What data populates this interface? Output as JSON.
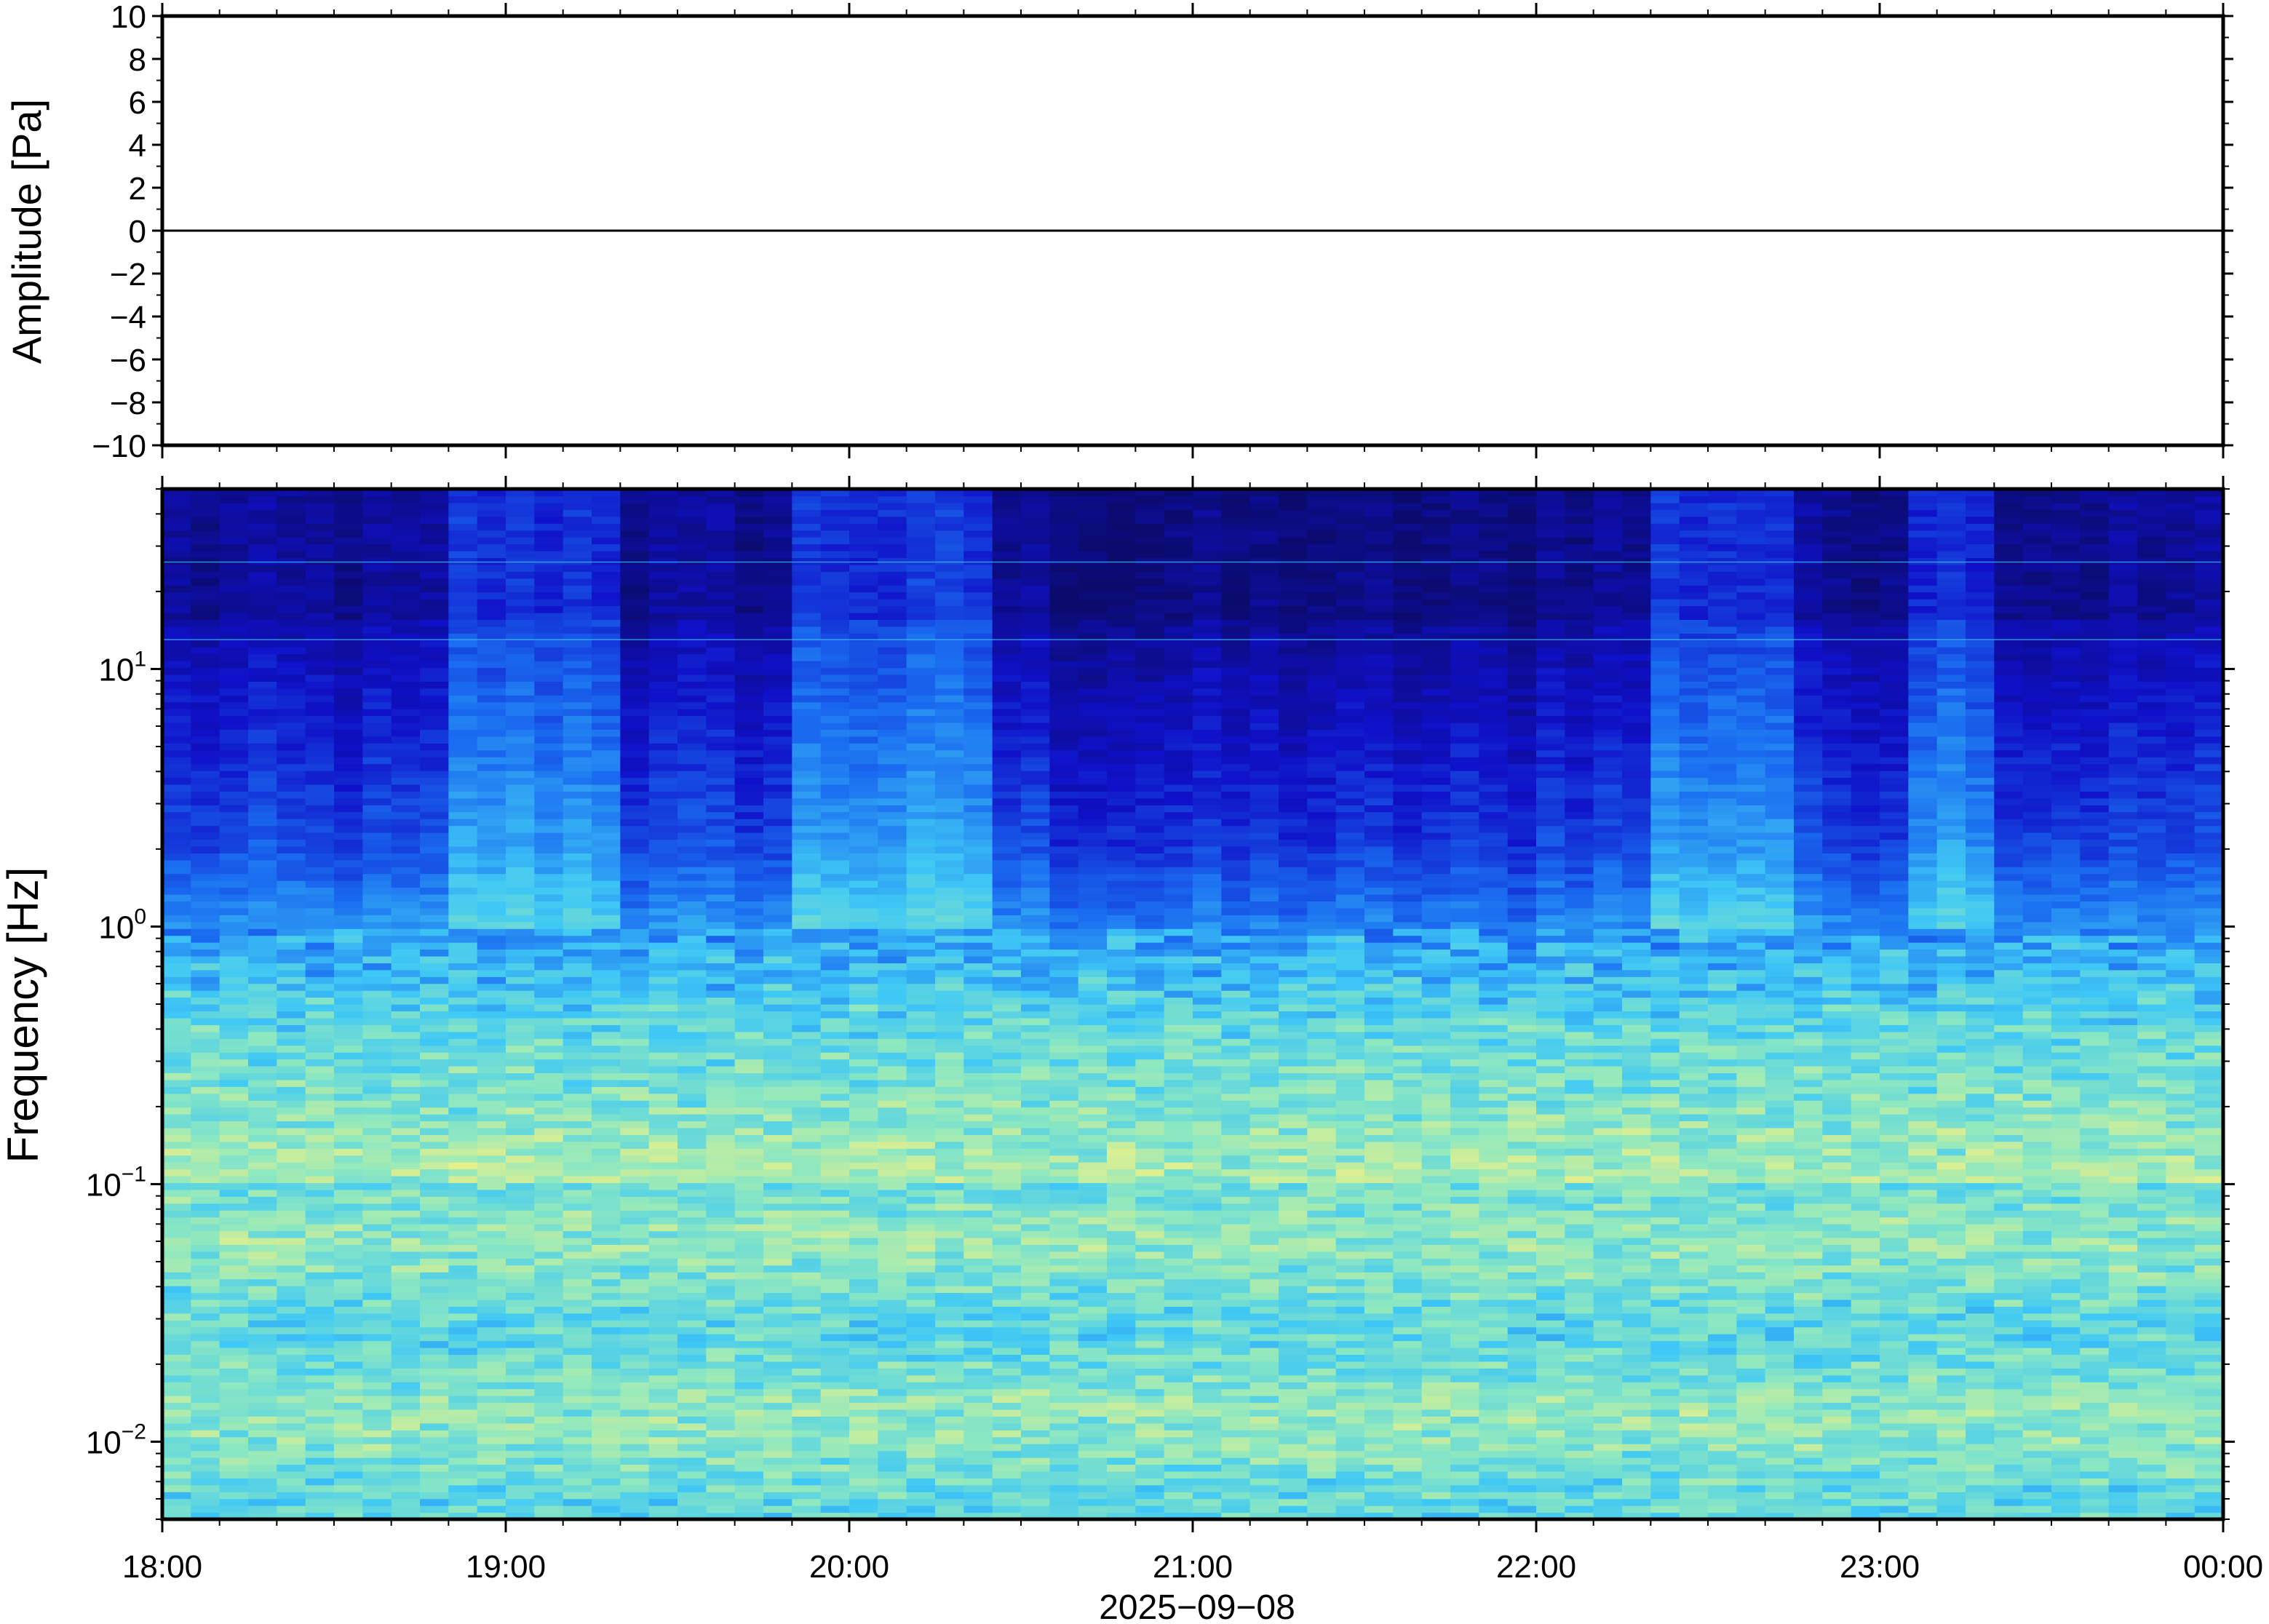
{
  "chart_data": [
    {
      "type": "line",
      "panel": "waveform",
      "ylabel": "Amplitude [Pa]",
      "ylim": [
        -10,
        10
      ],
      "yticks": [
        10,
        8,
        6,
        4,
        2,
        0,
        -2,
        -4,
        -6,
        -8,
        -10
      ],
      "ytick_labels": [
        "10",
        "8",
        "6",
        "4",
        "2",
        "0",
        "−2",
        "−4",
        "−6",
        "−8",
        "−10"
      ],
      "xlim": [
        "18:00",
        "00:00"
      ],
      "series": [
        {
          "values_description_free": true,
          "x": [
            "18:00",
            "19:00",
            "20:00",
            "21:00",
            "22:00",
            "23:00",
            "00:00"
          ],
          "y": [
            0,
            0,
            0,
            0,
            0,
            0,
            0
          ]
        }
      ],
      "line_color": "#000000",
      "grid": false
    },
    {
      "type": "heatmap",
      "panel": "spectrogram",
      "ylabel": "Frequency [Hz]",
      "yscale": "log",
      "ylim": [
        0.005,
        50
      ],
      "yticks": [
        {
          "value": 10,
          "base": "10",
          "exp": "1"
        },
        {
          "value": 1,
          "base": "10",
          "exp": "0"
        },
        {
          "value": 0.1,
          "base": "10",
          "exp": "−1"
        },
        {
          "value": 0.01,
          "base": "10",
          "exp": "−2"
        }
      ],
      "xlabel": "2025−09−08",
      "x_tick_labels": [
        "18:00",
        "19:00",
        "20:00",
        "21:00",
        "22:00",
        "23:00",
        "00:00"
      ],
      "colormap": [
        "#0b0b6e",
        "#1010c8",
        "#1a6cf0",
        "#3fc8f5",
        "#8ee8c0",
        "#e8f08a",
        "#f5a05a"
      ],
      "grid": false
    }
  ],
  "colors": {
    "axis": "#000000",
    "background": "#ffffff"
  }
}
